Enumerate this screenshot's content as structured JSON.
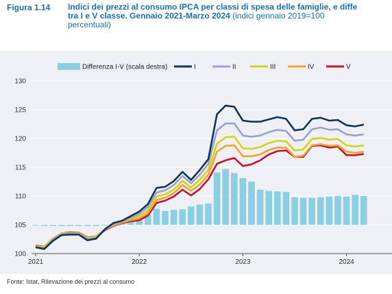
{
  "figure": {
    "number": "Figura 1.14",
    "title_bold": "Indici dei prezzi al consumo IPCA per classi di spesa delle famiglie, e diffe\ntra I e V classe. Gennaio 2021-Marzo 2024",
    "title_normal": " (indici gennaio 2019=100\npercentuali)",
    "source": "Fonte: Istat, Rilevazione dei prezzi al consumo"
  },
  "colors": {
    "panel": "#eef0f5",
    "grid": "#ffffff",
    "bar": "#8ccfe3",
    "I": "#0f3551",
    "II": "#9a9fd6",
    "III": "#cfd31a",
    "IV": "#f4a32a",
    "V": "#c4122f"
  },
  "chart_data": {
    "type": "line",
    "ylim": [
      100,
      130
    ],
    "y_ticks": [
      "100",
      "105",
      "110",
      "115",
      "120",
      "125",
      "130"
    ],
    "x_tick_labels": [
      "2021",
      "2022",
      "2023",
      "2024"
    ],
    "x_start": "2021-01",
    "x_end": "2024-03",
    "grid": true,
    "legend_position": "top",
    "legend": [
      "Differenza I-V (scala destra)",
      "I",
      "II",
      "III",
      "IV",
      "V"
    ],
    "x": [
      "2021-01",
      "2021-02",
      "2021-03",
      "2021-04",
      "2021-05",
      "2021-06",
      "2021-07",
      "2021-08",
      "2021-09",
      "2021-10",
      "2021-11",
      "2021-12",
      "2022-01",
      "2022-02",
      "2022-03",
      "2022-04",
      "2022-05",
      "2022-06",
      "2022-07",
      "2022-08",
      "2022-09",
      "2022-10",
      "2022-11",
      "2022-12",
      "2023-01",
      "2023-02",
      "2023-03",
      "2023-04",
      "2023-05",
      "2023-06",
      "2023-07",
      "2023-08",
      "2023-09",
      "2023-10",
      "2023-11",
      "2023-12",
      "2024-01",
      "2024-02",
      "2024-03"
    ],
    "series": [
      {
        "name": "I",
        "values": [
          101.1,
          100.8,
          102.2,
          103.2,
          103.3,
          103.3,
          102.3,
          102.6,
          104.2,
          105.3,
          105.7,
          106.5,
          107.3,
          108.6,
          111.4,
          111.6,
          112.6,
          114.2,
          112.8,
          114.5,
          116.4,
          124.2,
          125.7,
          125.5,
          123.1,
          122.9,
          122.9,
          123.3,
          123.7,
          123.4,
          121.4,
          121.6,
          123.4,
          123.6,
          123.1,
          123.2,
          122.3,
          122.1,
          122.4
        ]
      },
      {
        "name": "II",
        "values": [
          101.2,
          100.9,
          102.4,
          103.3,
          103.5,
          103.4,
          102.5,
          102.7,
          104.1,
          105.1,
          105.6,
          106.2,
          106.9,
          108.1,
          110.6,
          111.0,
          111.9,
          113.5,
          112.2,
          113.7,
          115.6,
          121.4,
          122.6,
          122.6,
          120.5,
          120.3,
          120.5,
          121.1,
          121.5,
          121.3,
          119.6,
          119.8,
          121.6,
          121.9,
          121.5,
          121.6,
          120.7,
          120.5,
          120.7
        ]
      },
      {
        "name": "III",
        "values": [
          101.3,
          101.1,
          102.5,
          103.4,
          103.6,
          103.5,
          102.7,
          102.9,
          104.1,
          105.0,
          105.5,
          106.0,
          106.5,
          107.5,
          109.9,
          110.3,
          111.1,
          112.6,
          111.5,
          112.8,
          114.6,
          119.1,
          120.2,
          120.3,
          118.3,
          118.2,
          118.5,
          119.2,
          119.6,
          119.5,
          117.9,
          118.1,
          119.9,
          120.1,
          119.8,
          119.9,
          118.8,
          118.6,
          118.8
        ]
      },
      {
        "name": "IV",
        "values": [
          101.3,
          101.2,
          102.6,
          103.5,
          103.6,
          103.5,
          102.7,
          103.0,
          104.1,
          104.9,
          105.4,
          105.8,
          106.1,
          107.0,
          109.3,
          109.7,
          110.5,
          111.9,
          110.9,
          112.0,
          113.7,
          117.7,
          118.7,
          118.8,
          116.9,
          116.9,
          117.2,
          118.0,
          118.4,
          118.4,
          116.8,
          117.0,
          118.8,
          119.0,
          118.7,
          118.8,
          117.7,
          117.5,
          117.7
        ]
      },
      {
        "name": "V",
        "values": [
          101.4,
          101.2,
          102.6,
          103.5,
          103.7,
          103.6,
          102.8,
          103.0,
          104.0,
          104.8,
          105.3,
          105.6,
          105.8,
          106.6,
          108.8,
          109.2,
          109.9,
          111.1,
          110.1,
          111.2,
          112.9,
          115.6,
          116.2,
          116.6,
          115.2,
          115.5,
          116.2,
          117.2,
          117.8,
          117.9,
          116.8,
          116.8,
          118.7,
          118.8,
          118.4,
          118.6,
          117.1,
          117.1,
          117.3
        ]
      },
      {
        "name": "Differenza I-V (scala destra)",
        "type": "bar",
        "values": [
          105.0,
          104.8,
          104.8,
          104.8,
          104.8,
          104.8,
          104.8,
          104.8,
          105.0,
          105.2,
          105.4,
          105.8,
          106.2,
          106.8,
          107.8,
          107.4,
          107.6,
          107.7,
          108.2,
          108.5,
          108.7,
          114.1,
          114.7,
          114.0,
          113.1,
          112.5,
          111.1,
          110.9,
          110.8,
          110.7,
          109.8,
          109.7,
          109.7,
          109.8,
          109.9,
          110.0,
          109.9,
          110.2,
          110.0
        ]
      }
    ]
  }
}
